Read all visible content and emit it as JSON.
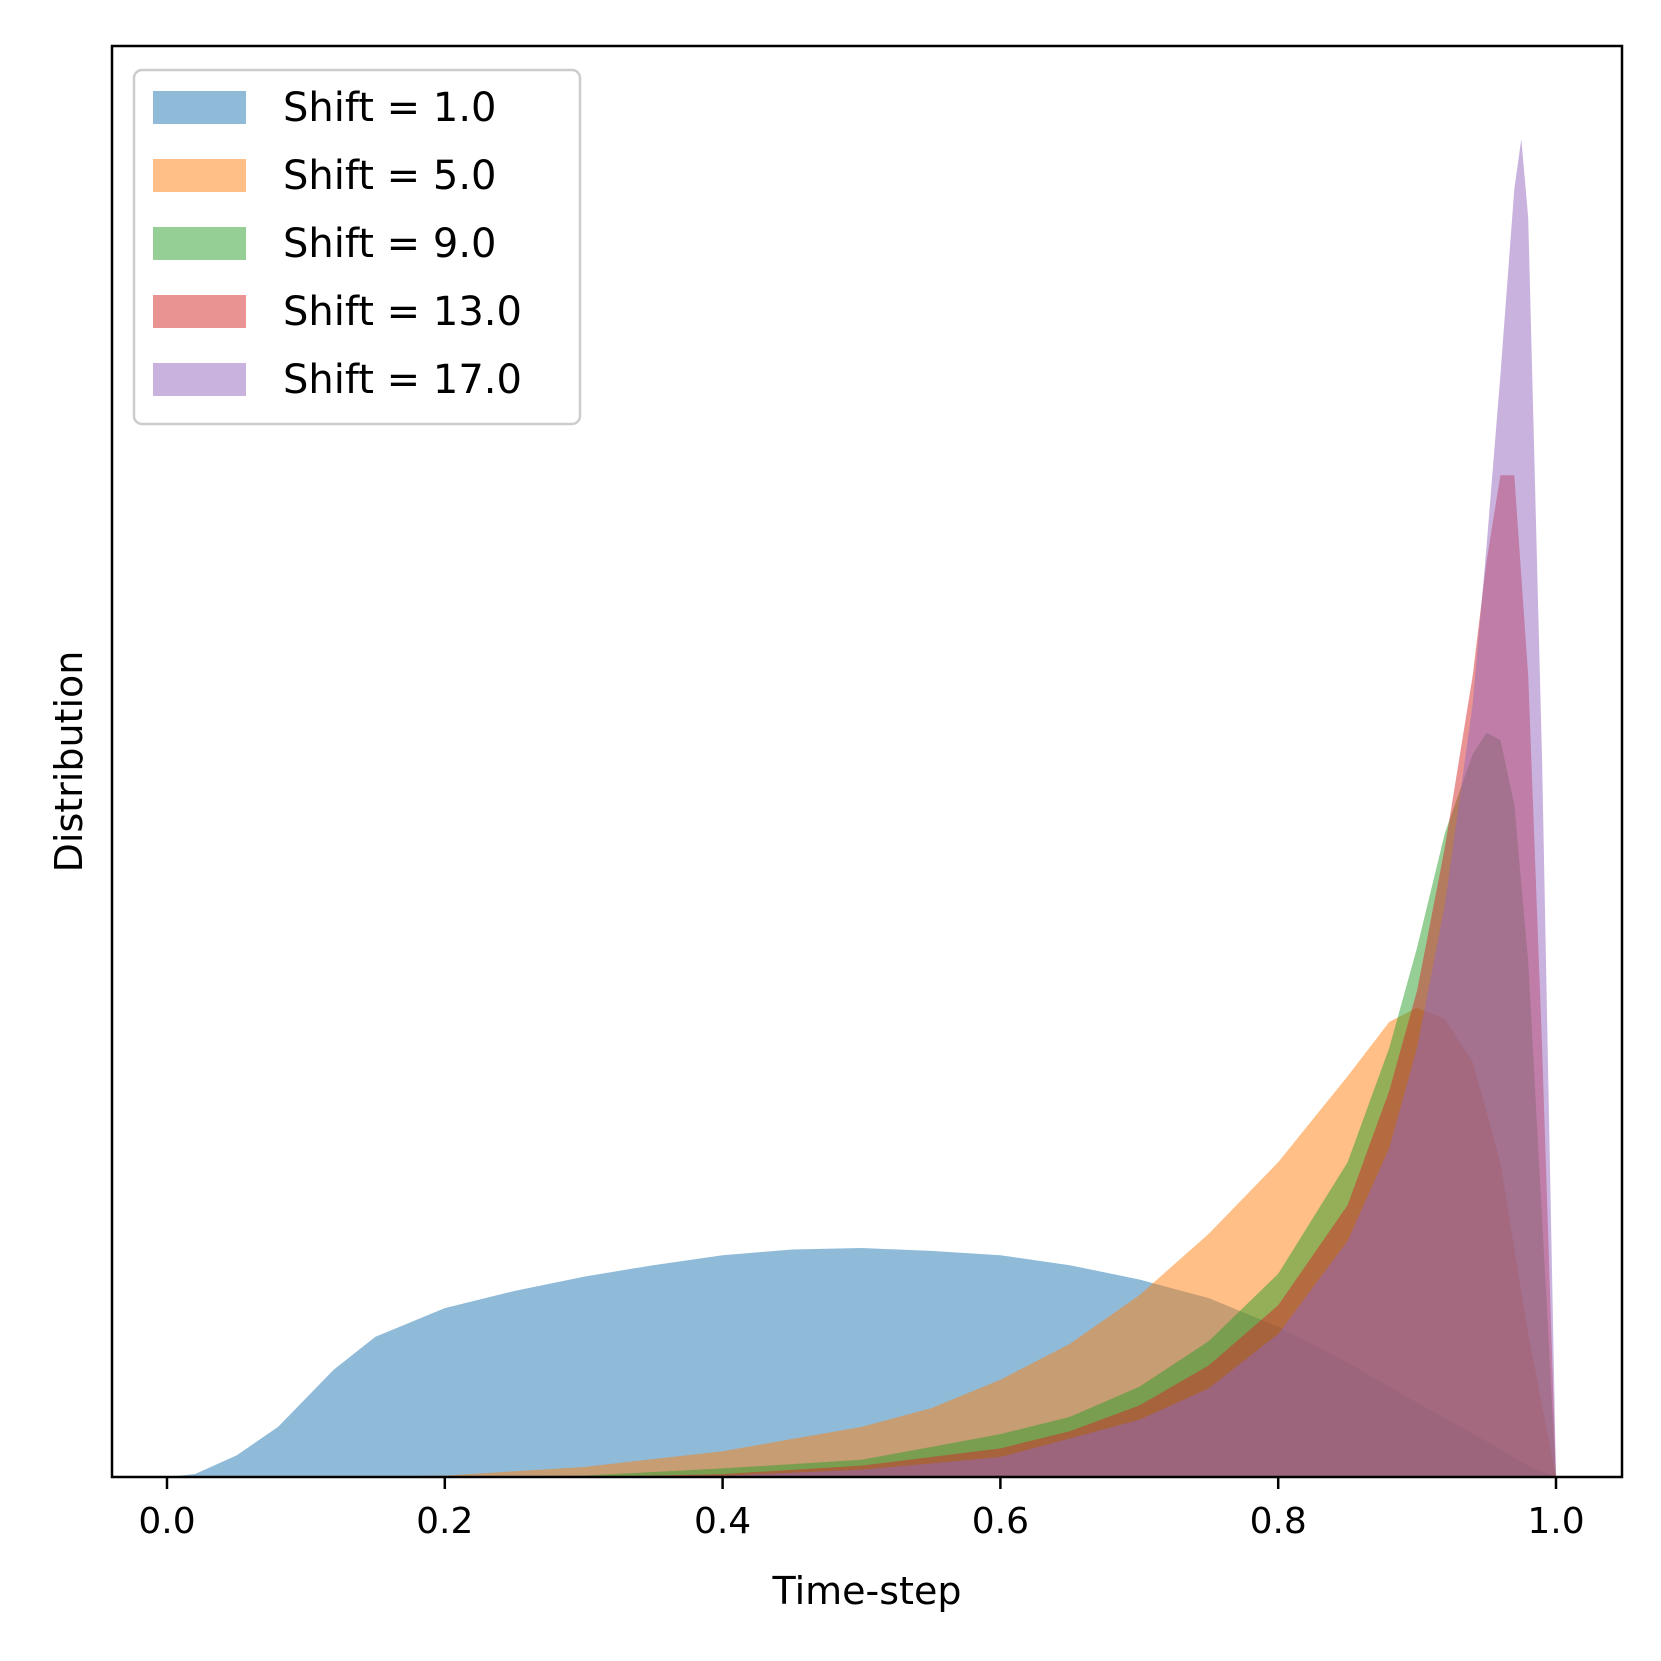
{
  "chart_data": {
    "type": "area",
    "xlabel": "Time-step",
    "ylabel": "Distribution",
    "xlim": [
      -0.04,
      1.05
    ],
    "ylim": [
      0,
      1.0
    ],
    "x_ticks": [
      "0.0",
      "0.2",
      "0.4",
      "0.6",
      "0.8",
      "1.0"
    ],
    "legend_position": "top-left",
    "grid": false,
    "series": [
      {
        "name": "Shift = 1.0",
        "color": "#1f77b4",
        "x": [
          0.0,
          0.02,
          0.05,
          0.08,
          0.1,
          0.12,
          0.15,
          0.2,
          0.25,
          0.3,
          0.35,
          0.4,
          0.45,
          0.5,
          0.55,
          0.6,
          0.65,
          0.7,
          0.75,
          0.8,
          0.85,
          0.9,
          0.95,
          0.98,
          1.0
        ],
        "values": [
          0.0,
          0.002,
          0.015,
          0.035,
          0.055,
          0.075,
          0.098,
          0.118,
          0.13,
          0.14,
          0.148,
          0.155,
          0.159,
          0.16,
          0.158,
          0.155,
          0.148,
          0.138,
          0.125,
          0.105,
          0.08,
          0.052,
          0.025,
          0.008,
          0.0
        ]
      },
      {
        "name": "Shift = 5.0",
        "color": "#ff7f0e",
        "x": [
          0.0,
          0.1,
          0.2,
          0.3,
          0.4,
          0.5,
          0.55,
          0.6,
          0.65,
          0.7,
          0.75,
          0.8,
          0.85,
          0.88,
          0.9,
          0.92,
          0.94,
          0.96,
          0.98,
          1.0
        ],
        "values": [
          0.0,
          0.0,
          0.001,
          0.007,
          0.018,
          0.035,
          0.048,
          0.068,
          0.093,
          0.127,
          0.17,
          0.22,
          0.28,
          0.318,
          0.328,
          0.32,
          0.29,
          0.22,
          0.1,
          0.0
        ]
      },
      {
        "name": "Shift = 9.0",
        "color": "#2ca02c",
        "x": [
          0.0,
          0.2,
          0.3,
          0.4,
          0.5,
          0.6,
          0.65,
          0.7,
          0.75,
          0.8,
          0.85,
          0.88,
          0.9,
          0.92,
          0.94,
          0.95,
          0.96,
          0.97,
          0.98,
          0.99,
          1.0
        ],
        "values": [
          0.0,
          0.0,
          0.001,
          0.006,
          0.012,
          0.03,
          0.042,
          0.063,
          0.095,
          0.142,
          0.22,
          0.3,
          0.37,
          0.45,
          0.505,
          0.52,
          0.515,
          0.47,
          0.36,
          0.18,
          0.0
        ]
      },
      {
        "name": "Shift = 13.0",
        "color": "#d62728",
        "x": [
          0.0,
          0.3,
          0.4,
          0.5,
          0.6,
          0.65,
          0.7,
          0.75,
          0.8,
          0.85,
          0.88,
          0.9,
          0.92,
          0.94,
          0.95,
          0.96,
          0.97,
          0.98,
          0.99,
          1.0
        ],
        "values": [
          0.0,
          0.0,
          0.002,
          0.008,
          0.02,
          0.032,
          0.05,
          0.078,
          0.12,
          0.19,
          0.27,
          0.34,
          0.44,
          0.56,
          0.64,
          0.7,
          0.7,
          0.56,
          0.3,
          0.0
        ]
      },
      {
        "name": "Shift = 17.0",
        "color": "#9467bd",
        "x": [
          0.0,
          0.3,
          0.4,
          0.5,
          0.6,
          0.7,
          0.75,
          0.8,
          0.85,
          0.88,
          0.9,
          0.92,
          0.94,
          0.95,
          0.96,
          0.97,
          0.975,
          0.98,
          0.99,
          1.0
        ],
        "values": [
          0.0,
          0.0,
          0.001,
          0.005,
          0.014,
          0.04,
          0.062,
          0.1,
          0.165,
          0.23,
          0.3,
          0.4,
          0.54,
          0.65,
          0.77,
          0.9,
          0.935,
          0.88,
          0.5,
          0.0
        ]
      }
    ]
  }
}
